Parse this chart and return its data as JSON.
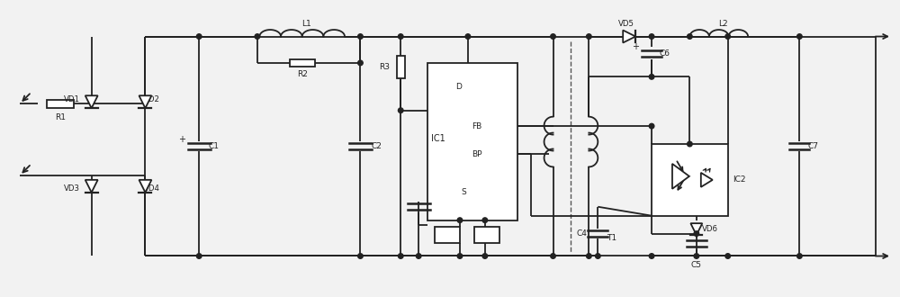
{
  "bg_color": "#f2f2f2",
  "lc": "#222222",
  "lw": 1.3,
  "figsize": [
    10.0,
    3.3
  ],
  "dpi": 100,
  "xlim": [
    0,
    100
  ],
  "ylim": [
    0,
    33
  ]
}
